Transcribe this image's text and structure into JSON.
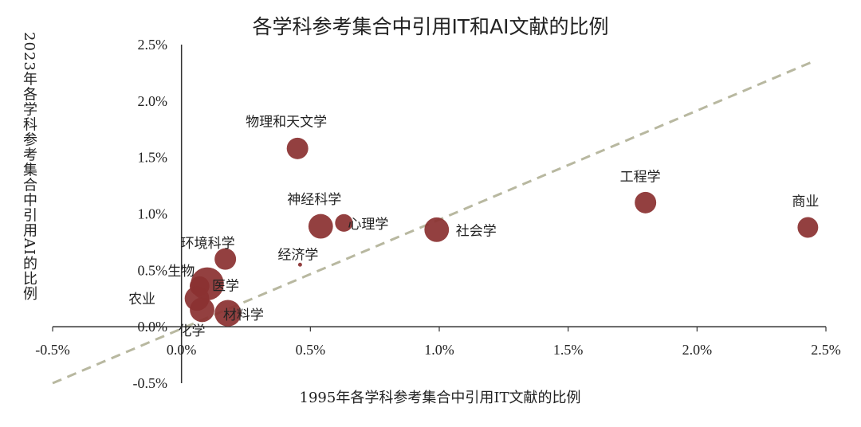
{
  "chart_data": {
    "type": "scatter",
    "title": "各学科参考集合中引用IT和AI文献的比例",
    "xlabel": "1995年各学科参考集合中引用IT文献的比例",
    "ylabel": "2023年各学科参考集合中引用AI的比例",
    "xlim": [
      -0.5,
      2.5
    ],
    "ylim": [
      -0.5,
      2.5
    ],
    "x_ticks": [
      "-0.5%",
      "0.0%",
      "0.5%",
      "1.0%",
      "1.5%",
      "2.0%",
      "2.5%"
    ],
    "y_ticks": [
      "2.5%",
      "2.0%",
      "1.5%",
      "1.0%",
      "0.5%",
      "0.0%",
      "-0.5%"
    ],
    "grid": false,
    "colors": {
      "marker": "#8B3232",
      "trend": "#B8B8A0"
    },
    "trendline": {
      "style": "dashed",
      "points": [
        [
          -0.5,
          -0.5
        ],
        [
          2.45,
          2.35
        ]
      ]
    },
    "points": [
      {
        "label": "物理和天文学",
        "x": 0.45,
        "y": 1.58,
        "size": 0.9
      },
      {
        "label": "神经科学",
        "x": 0.54,
        "y": 0.89,
        "size": 1.3
      },
      {
        "label": "心理学",
        "x": 0.63,
        "y": 0.92,
        "size": 0.5
      },
      {
        "label": "社会学",
        "x": 0.99,
        "y": 0.86,
        "size": 1.3
      },
      {
        "label": "工程学",
        "x": 1.8,
        "y": 1.1,
        "size": 0.9
      },
      {
        "label": "商业",
        "x": 2.43,
        "y": 0.88,
        "size": 0.8
      },
      {
        "label": "环境科学",
        "x": 0.17,
        "y": 0.6,
        "size": 0.9
      },
      {
        "label": "经济学",
        "x": 0.46,
        "y": 0.55,
        "size": 0.1
      },
      {
        "label": "生物",
        "x": 0.07,
        "y": 0.36,
        "size": 0.7
      },
      {
        "label": "医学",
        "x": 0.1,
        "y": 0.38,
        "size": 2.8
      },
      {
        "label": "农业",
        "x": 0.06,
        "y": 0.25,
        "size": 1.3
      },
      {
        "label": "化学",
        "x": 0.08,
        "y": 0.15,
        "size": 1.3
      },
      {
        "label": "材料学",
        "x": 0.18,
        "y": 0.12,
        "size": 1.6
      }
    ]
  }
}
